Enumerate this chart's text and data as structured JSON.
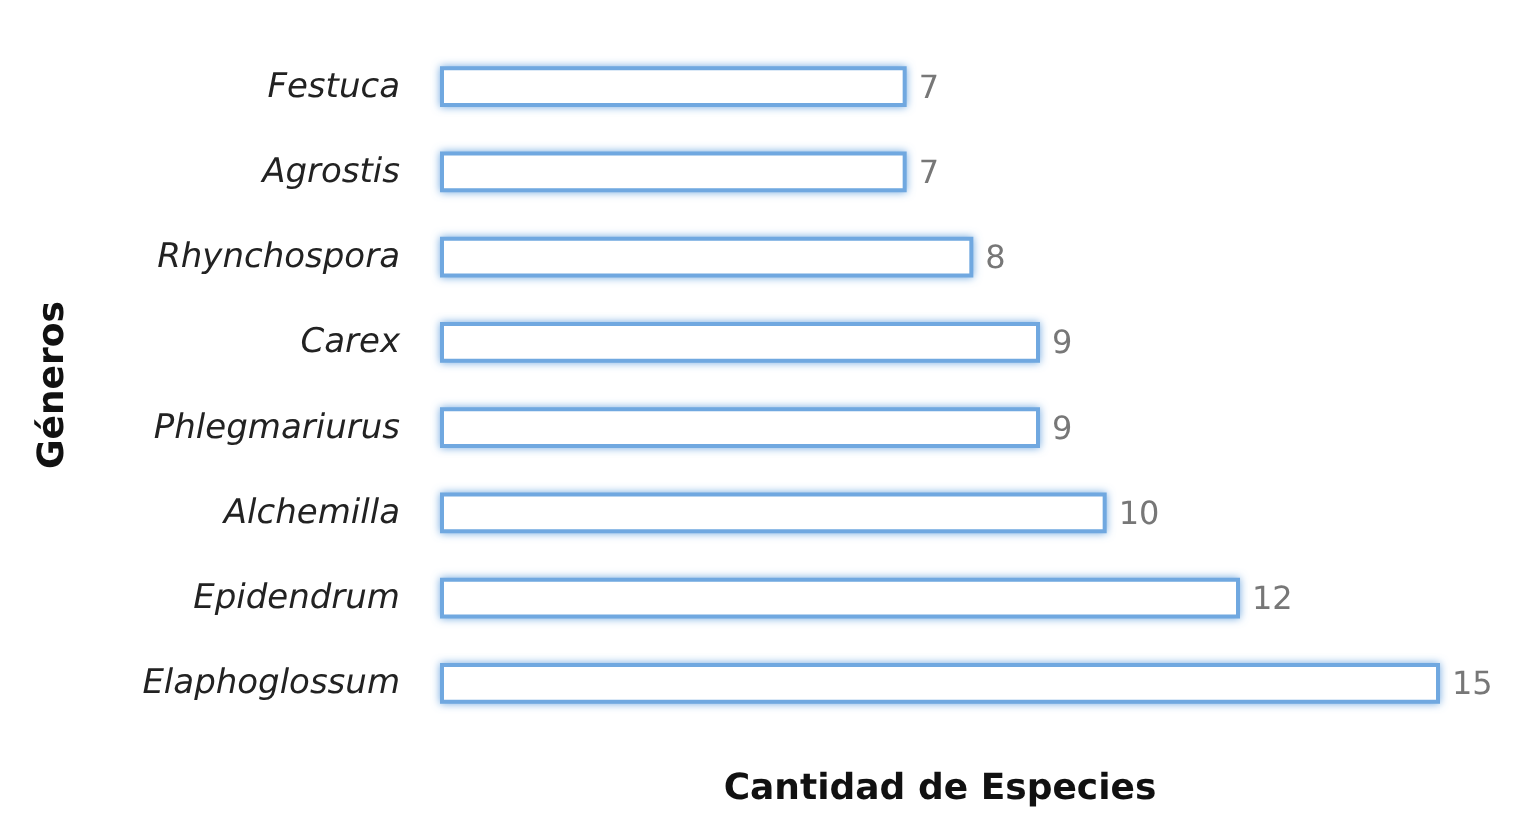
{
  "chart_data": {
    "type": "bar",
    "orientation": "horizontal",
    "categories": [
      "Festuca",
      "Agrostis",
      "Rhynchospora",
      "Carex",
      "Phlegmariurus",
      "Alchemilla",
      "Epidendrum",
      "Elaphoglossum"
    ],
    "values": [
      7,
      7,
      8,
      9,
      9,
      10,
      12,
      15
    ],
    "color": "#6fa8e0",
    "data_labels": true,
    "xlabel": "Cantidad de Especies",
    "ylabel": "Géneros",
    "tick_labels": "y"
  }
}
